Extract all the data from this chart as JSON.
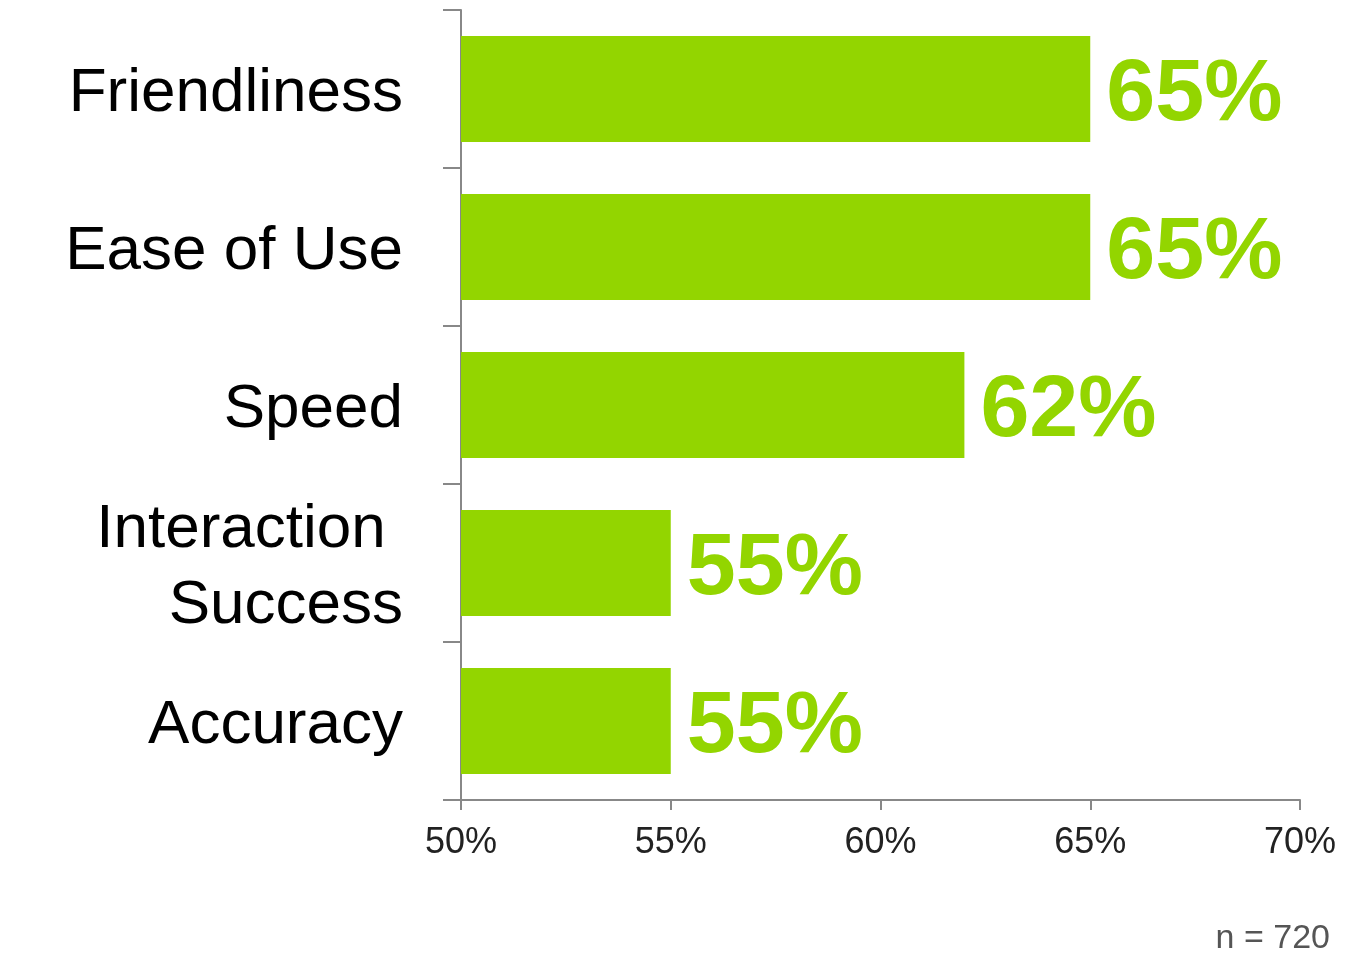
{
  "chart_data": {
    "type": "bar",
    "orientation": "horizontal",
    "categories": [
      "Friendliness",
      "Ease of Use",
      "Speed",
      "Interaction Success",
      "Accuracy"
    ],
    "values": [
      65,
      65,
      62,
      55,
      55
    ],
    "value_labels": [
      "65%",
      "65%",
      "62%",
      "55%",
      "55%"
    ],
    "color": "#93d500",
    "xlim": [
      50,
      70
    ],
    "xticks": [
      {
        "value": 50,
        "label": "50%"
      },
      {
        "value": 55,
        "label": "55%"
      },
      {
        "value": 60,
        "label": "60%"
      },
      {
        "value": 65,
        "label": "65%"
      },
      {
        "value": 70,
        "label": "70%"
      }
    ],
    "grid": false,
    "annotations": [
      "n = 720"
    ]
  }
}
